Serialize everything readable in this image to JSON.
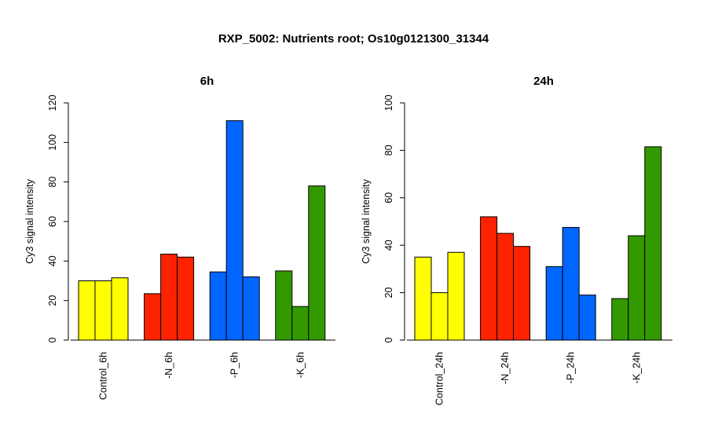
{
  "title": "RXP_5002: Nutrients root; Os10g0121300_31344",
  "chart_data": [
    {
      "type": "bar",
      "title": "6h",
      "ylabel": "Cy3 signal intensity",
      "ylim": [
        0,
        120
      ],
      "yticks": [
        0,
        20,
        40,
        60,
        80,
        100,
        120
      ],
      "categories": [
        "Control_6h",
        "-N_6h",
        "-P_6h",
        "-K_6h"
      ],
      "colors": [
        "#ffff00",
        "#ff2200",
        "#0066ff",
        "#339900"
      ],
      "values": [
        [
          30,
          30,
          31.5
        ],
        [
          23.5,
          43.5,
          42
        ],
        [
          34.5,
          111,
          32
        ],
        [
          35,
          17,
          78
        ]
      ]
    },
    {
      "type": "bar",
      "title": "24h",
      "ylabel": "Cy3 signal intensity",
      "ylim": [
        0,
        100
      ],
      "yticks": [
        0,
        20,
        40,
        60,
        80,
        100
      ],
      "categories": [
        "Control_24h",
        "-N_24h",
        "-P_24h",
        "-K_24h"
      ],
      "colors": [
        "#ffff00",
        "#ff2200",
        "#0066ff",
        "#339900"
      ],
      "values": [
        [
          35,
          20,
          37
        ],
        [
          52,
          45,
          39.5
        ],
        [
          31,
          47.5,
          19
        ],
        [
          17.5,
          44,
          81.5
        ]
      ]
    }
  ]
}
